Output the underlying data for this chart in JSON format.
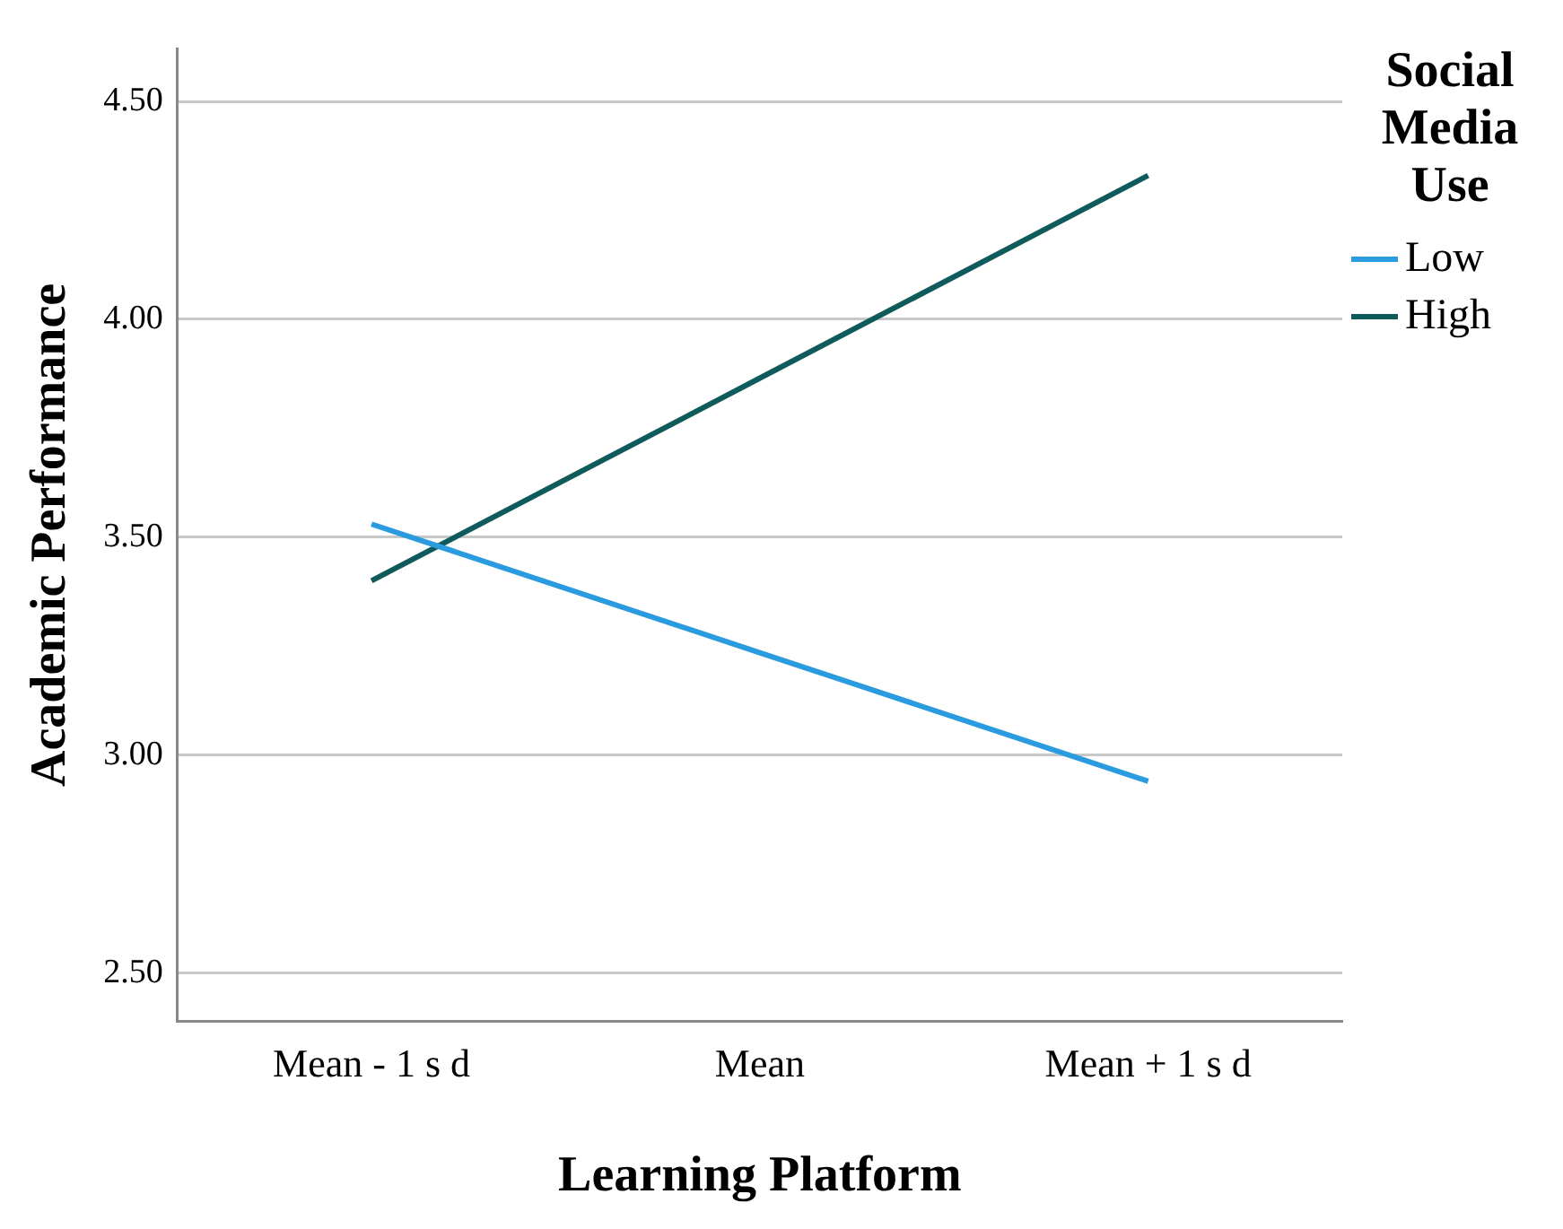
{
  "chart_data": {
    "type": "line",
    "xlabel": "Learning Platform",
    "ylabel": "Academic Performance",
    "legend_title": "Social Media Use",
    "categories": [
      "Mean - 1 s d",
      "Mean",
      "Mean + 1 s d"
    ],
    "series": [
      {
        "name": "Low",
        "color": "#2b9be0",
        "values": [
          3.53,
          3.235,
          2.94
        ]
      },
      {
        "name": "High",
        "color": "#0f5a5a",
        "values": [
          3.4,
          3.865,
          4.33
        ]
      }
    ],
    "ylim": [
      2.39,
      4.62
    ],
    "yticks": [
      {
        "value": 2.5,
        "label": "2.50"
      },
      {
        "value": 3,
        "label": "3.00"
      },
      {
        "value": 3.5,
        "label": "3.50"
      },
      {
        "value": 4,
        "label": "4.00"
      },
      {
        "value": 4.5,
        "label": "4.50"
      }
    ],
    "grid": "y",
    "legend": "right",
    "marker": "none",
    "line_style": "solid"
  }
}
